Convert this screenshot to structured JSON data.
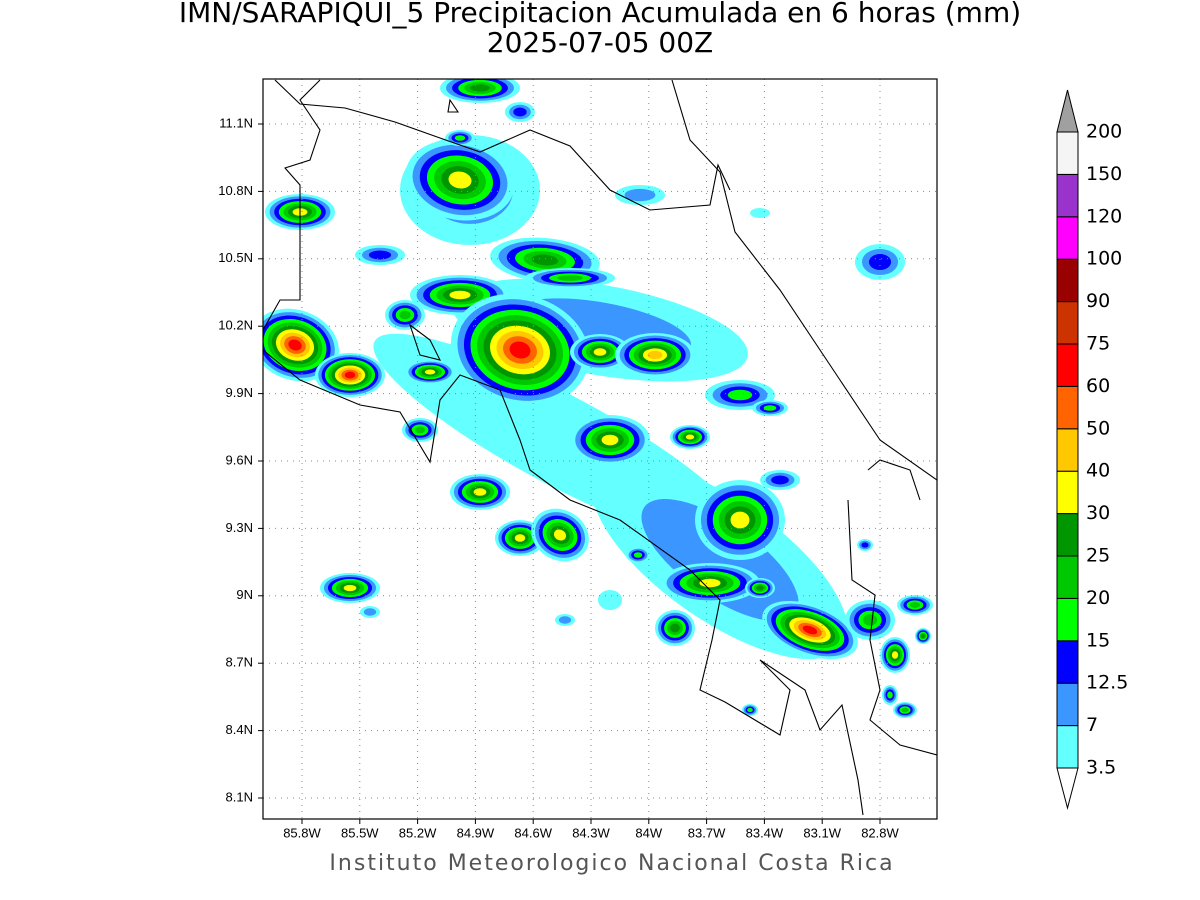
{
  "title": "IMN/SARAPIQUI_5 Precipitacion Acumulada en 6 horas (mm)",
  "subtitle": "2025-07-05 00Z",
  "map": {
    "lat_ticks": [
      "11.1N",
      "10.8N",
      "10.5N",
      "10.2N",
      "9.9N",
      "9.6N",
      "9.3N",
      "9N",
      "8.7N",
      "8.4N",
      "8.1N"
    ],
    "lon_ticks": [
      "85.8W",
      "85.5W",
      "85.2W",
      "84.9W",
      "84.6W",
      "84.3W",
      "84W",
      "83.7W",
      "83.4W",
      "83.1W",
      "82.8W"
    ],
    "grid": true
  },
  "colorbar": {
    "levels": [
      3.5,
      7,
      12.5,
      15,
      20,
      25,
      30,
      40,
      50,
      60,
      75,
      90,
      100,
      120,
      150,
      200
    ],
    "colors": [
      "#ffffff",
      "#64ffff",
      "#3c96ff",
      "#0000ff",
      "#00ff00",
      "#00c800",
      "#009600",
      "#ffff00",
      "#ffc800",
      "#ff6400",
      "#ff0000",
      "#cc3300",
      "#990000",
      "#ff00ff",
      "#9933cc",
      "#f5f5f5",
      "#a0a0a0"
    ]
  },
  "footer": "Instituto Meteorologico Nacional Costa Rica"
}
